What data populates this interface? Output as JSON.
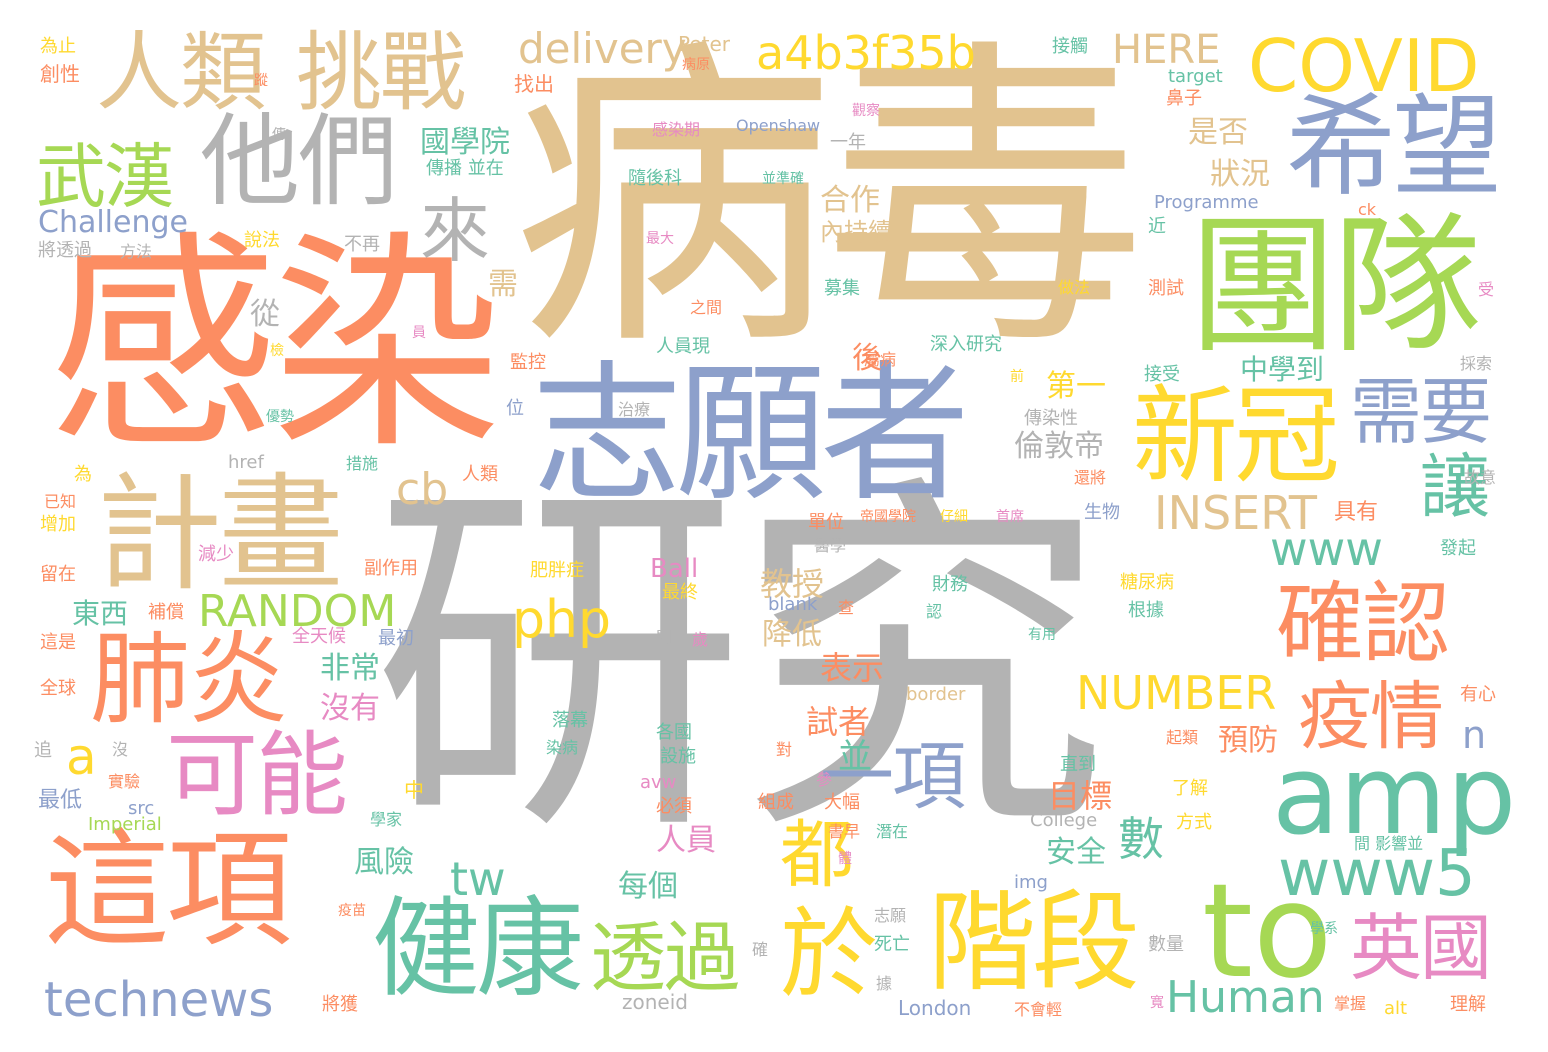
{
  "palette": {
    "tan": "#e2c38f",
    "gray": "#b3b3b3",
    "coral": "#fc8d62",
    "blue": "#8da0cb",
    "green": "#a6d854",
    "teal": "#66c2a5",
    "yellow": "#ffd92f",
    "pink": "#e78ac3"
  },
  "words": [
    {
      "text": "研究",
      "color": "gray"
    },
    {
      "text": "病毒",
      "color": "tan"
    },
    {
      "text": "感染",
      "color": "coral"
    },
    {
      "text": "志願者",
      "color": "blue"
    },
    {
      "text": "團隊",
      "color": "green"
    },
    {
      "text": "計畫",
      "color": "tan"
    },
    {
      "text": "這項",
      "color": "coral"
    },
    {
      "text": "希望",
      "color": "blue"
    },
    {
      "text": "他們",
      "color": "gray"
    },
    {
      "text": "人類",
      "color": "tan"
    },
    {
      "text": "挑戰",
      "color": "tan"
    },
    {
      "text": "COVID",
      "color": "yellow"
    },
    {
      "text": "新冠",
      "color": "yellow"
    },
    {
      "text": "階段",
      "color": "yellow"
    },
    {
      "text": "健康",
      "color": "teal"
    },
    {
      "text": "to",
      "color": "green"
    },
    {
      "text": "amp",
      "color": "teal"
    },
    {
      "text": "確認",
      "color": "coral"
    },
    {
      "text": "肺炎",
      "color": "coral"
    },
    {
      "text": "可能",
      "color": "pink"
    },
    {
      "text": "於",
      "color": "yellow"
    },
    {
      "text": "武漢",
      "color": "green"
    },
    {
      "text": "a4b3f35b",
      "color": "yellow"
    },
    {
      "text": "疫情",
      "color": "coral"
    },
    {
      "text": "需要",
      "color": "blue"
    },
    {
      "text": "英國",
      "color": "pink"
    },
    {
      "text": "www5",
      "color": "teal"
    },
    {
      "text": "透過",
      "color": "green"
    },
    {
      "text": "technews",
      "color": "blue"
    },
    {
      "text": "delivery",
      "color": "tan"
    },
    {
      "text": "讓",
      "color": "teal"
    },
    {
      "text": "來",
      "color": "gray"
    },
    {
      "text": "都",
      "color": "yellow"
    },
    {
      "text": "一項",
      "color": "blue"
    },
    {
      "text": "HERE",
      "color": "tan"
    },
    {
      "text": "Human",
      "color": "teal"
    },
    {
      "text": "RANDOM",
      "color": "green"
    },
    {
      "text": "NUMBER",
      "color": "yellow"
    },
    {
      "text": "INSERT",
      "color": "tan"
    },
    {
      "text": "www",
      "color": "teal"
    },
    {
      "text": "php",
      "color": "yellow"
    },
    {
      "text": "cb",
      "color": "tan"
    },
    {
      "text": "tw",
      "color": "teal"
    },
    {
      "text": "a",
      "color": "yellow"
    },
    {
      "text": "n",
      "color": "blue"
    },
    {
      "text": "Challenge",
      "color": "blue"
    },
    {
      "text": "國學院",
      "color": "teal"
    },
    {
      "text": "倫敦帝",
      "color": "gray"
    },
    {
      "text": "是否",
      "color": "tan"
    },
    {
      "text": "狀況",
      "color": "tan"
    },
    {
      "text": "合作",
      "color": "tan"
    },
    {
      "text": "內持續",
      "color": "tan"
    },
    {
      "text": "教授",
      "color": "tan"
    },
    {
      "text": "降低",
      "color": "tan"
    },
    {
      "text": "表示",
      "color": "coral"
    },
    {
      "text": "試者",
      "color": "coral"
    },
    {
      "text": "中學到",
      "color": "teal"
    },
    {
      "text": "第一",
      "color": "yellow"
    },
    {
      "text": "目標",
      "color": "coral"
    },
    {
      "text": "預防",
      "color": "coral"
    },
    {
      "text": "安全",
      "color": "teal"
    },
    {
      "text": "數",
      "color": "teal"
    },
    {
      "text": "人員",
      "color": "pink"
    },
    {
      "text": "每個",
      "color": "teal"
    },
    {
      "text": "風險",
      "color": "teal"
    },
    {
      "text": "非常",
      "color": "teal"
    },
    {
      "text": "沒有",
      "color": "pink"
    },
    {
      "text": "東西",
      "color": "teal"
    },
    {
      "text": "並",
      "color": "teal"
    },
    {
      "text": "後",
      "color": "coral"
    },
    {
      "text": "從",
      "color": "gray"
    },
    {
      "text": "需",
      "color": "tan"
    },
    {
      "text": "具有",
      "color": "coral"
    },
    {
      "text": "Peter",
      "color": "tan"
    },
    {
      "text": "target",
      "color": "teal"
    },
    {
      "text": "Openshaw",
      "color": "blue"
    },
    {
      "text": "Programme",
      "color": "blue"
    },
    {
      "text": "Ball",
      "color": "pink"
    },
    {
      "text": "Imperial",
      "color": "green"
    },
    {
      "text": "College",
      "color": "gray"
    },
    {
      "text": "London",
      "color": "blue"
    },
    {
      "text": "zoneid",
      "color": "gray"
    },
    {
      "text": "border",
      "color": "tan"
    },
    {
      "text": "blank",
      "color": "blue"
    },
    {
      "text": "href",
      "color": "gray"
    },
    {
      "text": "avw",
      "color": "pink"
    },
    {
      "text": "img",
      "color": "blue"
    },
    {
      "text": "src",
      "color": "blue"
    },
    {
      "text": "alt",
      "color": "yellow"
    },
    {
      "text": "ck",
      "color": "coral"
    },
    {
      "text": "為止",
      "color": "yellow"
    },
    {
      "text": "創性",
      "color": "coral"
    },
    {
      "text": "找出",
      "color": "coral"
    },
    {
      "text": "將透過",
      "color": "gray"
    },
    {
      "text": "方法",
      "color": "gray"
    },
    {
      "text": "不再",
      "color": "gray"
    },
    {
      "text": "說法",
      "color": "yellow"
    },
    {
      "text": "傳播 並在",
      "color": "teal"
    },
    {
      "text": "感染期",
      "color": "pink"
    },
    {
      "text": "隨後科",
      "color": "teal"
    },
    {
      "text": "一年",
      "color": "gray"
    },
    {
      "text": "接觸",
      "color": "teal"
    },
    {
      "text": "鼻子",
      "color": "coral"
    },
    {
      "text": "近",
      "color": "teal"
    },
    {
      "text": "測試",
      "color": "coral"
    },
    {
      "text": "做法",
      "color": "yellow"
    },
    {
      "text": "募集",
      "color": "teal"
    },
    {
      "text": "深入研究",
      "color": "teal"
    },
    {
      "text": "人員現",
      "color": "teal"
    },
    {
      "text": "監控",
      "color": "coral"
    },
    {
      "text": "接受",
      "color": "teal"
    },
    {
      "text": "傳染性",
      "color": "gray"
    },
    {
      "text": "位",
      "color": "blue"
    },
    {
      "text": "增加",
      "color": "yellow"
    },
    {
      "text": "減少",
      "color": "pink"
    },
    {
      "text": "留在",
      "color": "coral"
    },
    {
      "text": "補償",
      "color": "coral"
    },
    {
      "text": "這是",
      "color": "coral"
    },
    {
      "text": "全球",
      "color": "coral"
    },
    {
      "text": "最初",
      "color": "blue"
    },
    {
      "text": "全天候",
      "color": "pink"
    },
    {
      "text": "副作用",
      "color": "coral"
    },
    {
      "text": "肥胖症",
      "color": "yellow"
    },
    {
      "text": "單位",
      "color": "coral"
    },
    {
      "text": "生物",
      "color": "blue"
    },
    {
      "text": "財務",
      "color": "teal"
    },
    {
      "text": "根據",
      "color": "teal"
    },
    {
      "text": "糖尿病",
      "color": "yellow"
    },
    {
      "text": "醫學",
      "color": "gray"
    },
    {
      "text": "最終",
      "color": "yellow"
    },
    {
      "text": "落幕",
      "color": "teal"
    },
    {
      "text": "各國",
      "color": "teal"
    },
    {
      "text": "設施",
      "color": "teal"
    },
    {
      "text": "染病",
      "color": "teal"
    },
    {
      "text": "必須",
      "color": "coral"
    },
    {
      "text": "組成",
      "color": "coral"
    },
    {
      "text": "大幅",
      "color": "coral"
    },
    {
      "text": "直到",
      "color": "teal"
    },
    {
      "text": "了解",
      "color": "yellow"
    },
    {
      "text": "方式",
      "color": "yellow"
    },
    {
      "text": "最低",
      "color": "blue"
    },
    {
      "text": "實驗",
      "color": "coral"
    },
    {
      "text": "學家",
      "color": "teal"
    },
    {
      "text": "中",
      "color": "yellow"
    },
    {
      "text": "死亡",
      "color": "teal"
    },
    {
      "text": "將獲",
      "color": "coral"
    },
    {
      "text": "數量",
      "color": "gray"
    },
    {
      "text": "理解",
      "color": "coral"
    },
    {
      "text": "有心",
      "color": "coral"
    },
    {
      "text": "發起",
      "color": "teal"
    },
    {
      "text": "採索",
      "color": "gray"
    },
    {
      "text": "受",
      "color": "pink"
    },
    {
      "text": "故意",
      "color": "gray"
    },
    {
      "text": "潛在",
      "color": "teal"
    },
    {
      "text": "書早",
      "color": "coral"
    },
    {
      "text": "起類",
      "color": "coral"
    },
    {
      "text": "間 影響並",
      "color": "teal"
    },
    {
      "text": "疫苗",
      "color": "coral"
    },
    {
      "text": "志願",
      "color": "gray"
    },
    {
      "text": "不會輕",
      "color": "coral"
    },
    {
      "text": "學系",
      "color": "teal"
    },
    {
      "text": "掌握",
      "color": "coral"
    },
    {
      "text": "帝國學院",
      "color": "coral"
    },
    {
      "text": "仔細",
      "color": "yellow"
    },
    {
      "text": "首席",
      "color": "pink"
    },
    {
      "text": "最大",
      "color": "pink"
    },
    {
      "text": "觀察",
      "color": "pink"
    },
    {
      "text": "並準確",
      "color": "teal"
    },
    {
      "text": "之間",
      "color": "coral"
    },
    {
      "text": "病原",
      "color": "coral"
    },
    {
      "text": "屬病",
      "color": "coral"
    },
    {
      "text": "措施",
      "color": "teal"
    },
    {
      "text": "人類",
      "color": "coral"
    },
    {
      "text": "還將",
      "color": "coral"
    },
    {
      "text": "已知",
      "color": "coral"
    },
    {
      "text": "為",
      "color": "yellow"
    },
    {
      "text": "優勢",
      "color": "teal"
    },
    {
      "text": "治療",
      "color": "gray"
    },
    {
      "text": "有用",
      "color": "teal"
    },
    {
      "text": "參",
      "color": "pink"
    },
    {
      "text": "對",
      "color": "coral"
    },
    {
      "text": "追",
      "color": "gray"
    },
    {
      "text": "沒",
      "color": "gray"
    },
    {
      "text": "開",
      "color": "gray"
    },
    {
      "text": "認",
      "color": "teal"
    },
    {
      "text": "查",
      "color": "coral"
    },
    {
      "text": "確",
      "color": "gray"
    },
    {
      "text": "據",
      "color": "gray"
    },
    {
      "text": "歲",
      "color": "pink"
    },
    {
      "text": "蹤",
      "color": "coral"
    },
    {
      "text": "傳",
      "color": "gray"
    },
    {
      "text": "員",
      "color": "pink"
    },
    {
      "text": "檢",
      "color": "yellow"
    },
    {
      "text": "前",
      "color": "yellow"
    },
    {
      "text": "寬",
      "color": "pink"
    },
    {
      "text": "體",
      "color": "pink"
    }
  ]
}
